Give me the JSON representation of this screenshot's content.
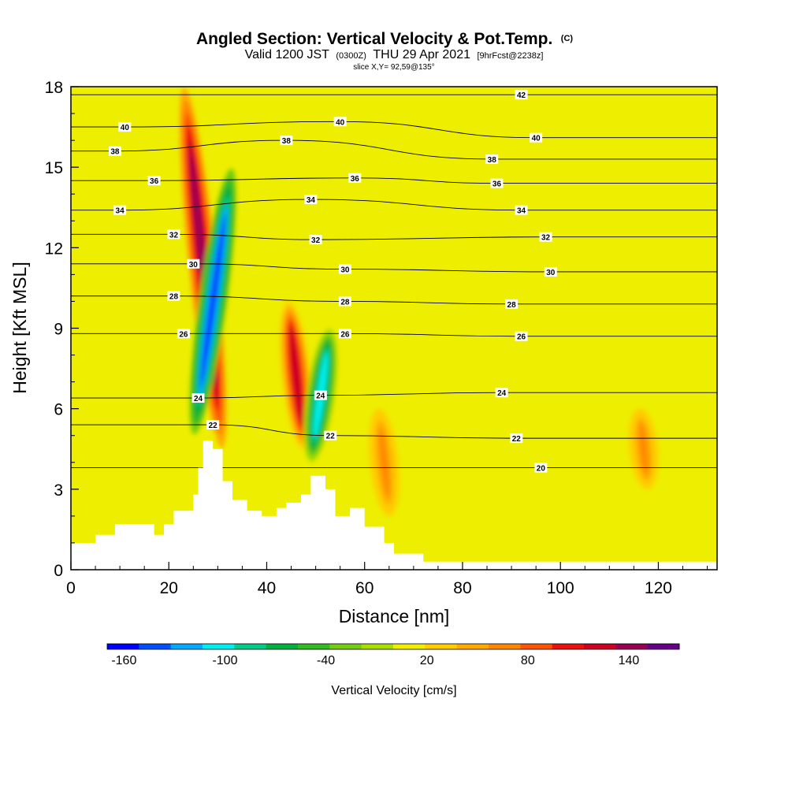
{
  "title": {
    "main": "Angled Section: Vertical Velocity & Pot.Temp.",
    "main_mark": "(C)",
    "valid_prefix": "Valid 1200 JST",
    "valid_utc": "(0300Z)",
    "valid_date": "THU 29 Apr 2021",
    "forecast": "[9hrFcst@2238z]",
    "slice": "slice X,Y= 92,59@135°"
  },
  "chart_data": {
    "type": "heatmap",
    "xlabel": "Distance [nm]",
    "ylabel": "Height [Kft MSL]",
    "xlim": [
      0,
      132
    ],
    "ylim": [
      0,
      18
    ],
    "x_ticks": [
      0,
      20,
      40,
      60,
      80,
      100,
      120
    ],
    "y_ticks": [
      0,
      3,
      6,
      9,
      12,
      15,
      18
    ],
    "colorbar": {
      "label": "Vertical Velocity [cm/s]",
      "min": -170,
      "max": 170,
      "tick_labels": [
        "-160",
        "-100",
        "-40",
        "20",
        "80",
        "140"
      ],
      "tick_values": [
        -160,
        -100,
        -40,
        20,
        80,
        140
      ],
      "colors": [
        "#0000ff",
        "#0050ff",
        "#00aaff",
        "#00eeee",
        "#00cc88",
        "#00b040",
        "#33bb22",
        "#77cc11",
        "#aadd00",
        "#eeee00",
        "#ffcc00",
        "#ffaa00",
        "#ff8800",
        "#ff5500",
        "#ee1111",
        "#cc0022",
        "#990055",
        "#660088"
      ]
    },
    "background_value_cm_s": 10,
    "updraft_cores": [
      {
        "x": 27,
        "z_bottom": 4.5,
        "z_top": 18,
        "peak_cm_s": 150
      },
      {
        "x": 46,
        "z_bottom": 4.5,
        "z_top": 10,
        "peak_cm_s": 120
      },
      {
        "x": 64,
        "z_bottom": 2,
        "z_top": 6,
        "peak_cm_s": 60
      },
      {
        "x": 117,
        "z_bottom": 3,
        "z_top": 6,
        "peak_cm_s": 60
      }
    ],
    "downdraft_cores": [
      {
        "x": 29,
        "z_bottom": 5,
        "z_top": 15,
        "peak_cm_s": -140
      },
      {
        "x": 51,
        "z_bottom": 4,
        "z_top": 9,
        "peak_cm_s": -100
      }
    ],
    "potential_temperature_labels_C": [
      {
        "x": 11,
        "z": 16.5,
        "text": "40"
      },
      {
        "x": 9,
        "z": 15.6,
        "text": "38"
      },
      {
        "x": 17,
        "z": 14.5,
        "text": "36"
      },
      {
        "x": 10,
        "z": 13.4,
        "text": "34"
      },
      {
        "x": 21,
        "z": 12.5,
        "text": "32"
      },
      {
        "x": 25,
        "z": 11.4,
        "text": "30"
      },
      {
        "x": 21,
        "z": 10.2,
        "text": "28"
      },
      {
        "x": 23,
        "z": 8.8,
        "text": "26"
      },
      {
        "x": 26,
        "z": 6.4,
        "text": "24"
      },
      {
        "x": 29,
        "z": 5.4,
        "text": "22"
      },
      {
        "x": 55,
        "z": 16.7,
        "text": "40"
      },
      {
        "x": 44,
        "z": 16.0,
        "text": "38"
      },
      {
        "x": 58,
        "z": 14.6,
        "text": "36"
      },
      {
        "x": 49,
        "z": 13.8,
        "text": "34"
      },
      {
        "x": 50,
        "z": 12.3,
        "text": "32"
      },
      {
        "x": 56,
        "z": 11.2,
        "text": "30"
      },
      {
        "x": 56,
        "z": 10.0,
        "text": "28"
      },
      {
        "x": 56,
        "z": 8.8,
        "text": "26"
      },
      {
        "x": 51,
        "z": 6.5,
        "text": "24"
      },
      {
        "x": 53,
        "z": 5.0,
        "text": "22"
      },
      {
        "x": 92,
        "z": 17.7,
        "text": "42"
      },
      {
        "x": 95,
        "z": 16.1,
        "text": "40"
      },
      {
        "x": 86,
        "z": 15.3,
        "text": "38"
      },
      {
        "x": 87,
        "z": 14.4,
        "text": "36"
      },
      {
        "x": 92,
        "z": 13.4,
        "text": "34"
      },
      {
        "x": 97,
        "z": 12.4,
        "text": "32"
      },
      {
        "x": 98,
        "z": 11.1,
        "text": "30"
      },
      {
        "x": 90,
        "z": 9.9,
        "text": "28"
      },
      {
        "x": 92,
        "z": 8.7,
        "text": "26"
      },
      {
        "x": 88,
        "z": 6.6,
        "text": "24"
      },
      {
        "x": 91,
        "z": 4.9,
        "text": "22"
      },
      {
        "x": 96,
        "z": 3.8,
        "text": "20"
      }
    ]
  }
}
